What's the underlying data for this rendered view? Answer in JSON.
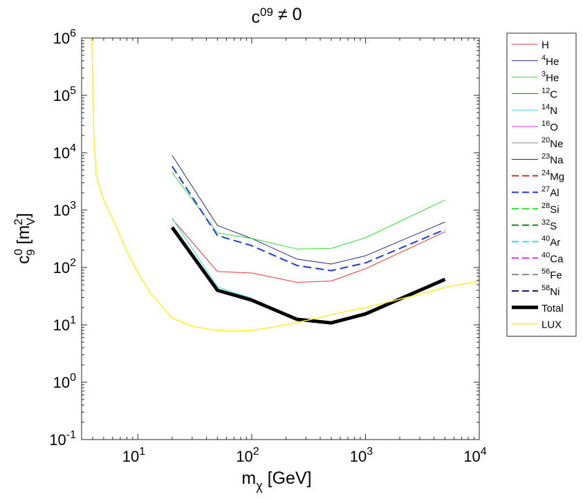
{
  "chart_data": {
    "type": "line",
    "title": "c",
    "title_sup": "0",
    "title_sub": "9",
    "title_tail": " ≠ 0",
    "xlabel": "m",
    "xlabel_sub": "χ",
    "xlabel_tail": " [GeV]",
    "ylabel": "c",
    "ylabel_sup": "0",
    "ylabel_sub": "9",
    "ylabel_mid": " [m",
    "ylabel_unit_sup": "2",
    "ylabel_unit_sub": "V",
    "ylabel_tail": "]",
    "xscale": "log",
    "yscale": "log",
    "xlim": [
      3.2,
      10000
    ],
    "ylim": [
      0.1,
      1000000
    ],
    "grid": false,
    "legend_position": "outside-right",
    "x_ticks": [
      {
        "base": "10",
        "exp": "1",
        "value": 10
      },
      {
        "base": "10",
        "exp": "2",
        "value": 100
      },
      {
        "base": "10",
        "exp": "3",
        "value": 1000
      },
      {
        "base": "10",
        "exp": "4",
        "value": 10000
      }
    ],
    "y_ticks": [
      {
        "base": "10",
        "exp": "-1",
        "value": 0.1
      },
      {
        "base": "10",
        "exp": "0",
        "value": 1
      },
      {
        "base": "10",
        "exp": "1",
        "value": 10
      },
      {
        "base": "10",
        "exp": "2",
        "value": 100
      },
      {
        "base": "10",
        "exp": "3",
        "value": 1000
      },
      {
        "base": "10",
        "exp": "4",
        "value": 10000
      },
      {
        "base": "10",
        "exp": "5",
        "value": 100000
      },
      {
        "base": "10",
        "exp": "6",
        "value": 1000000
      }
    ],
    "series": [
      {
        "name": "H",
        "sup": "",
        "label": "H",
        "color": "#ee3333",
        "style": "solid",
        "width": 1,
        "x": [
          20,
          50,
          100,
          250,
          500,
          1000,
          5000
        ],
        "y": [
          700,
          85,
          80,
          55,
          58,
          95,
          420
        ]
      },
      {
        "name": "4He",
        "sup": "4",
        "label": "He",
        "color": "#23238e",
        "style": "solid",
        "width": 1,
        "x": [
          20,
          50,
          100,
          250,
          500,
          1000,
          5000
        ],
        "y": [
          9000,
          540,
          320,
          140,
          115,
          160,
          620
        ]
      },
      {
        "name": "3He",
        "sup": "3",
        "label": "He",
        "color": "#33dd33",
        "style": "solid",
        "width": 1,
        "x": [
          20,
          50,
          100,
          250,
          500,
          1000,
          5000
        ],
        "y": [
          4500,
          400,
          320,
          210,
          215,
          330,
          1500
        ]
      },
      {
        "name": "12C",
        "sup": "12",
        "label": "C",
        "color": "#008800",
        "style": "solid",
        "width": 1,
        "x": [],
        "y": []
      },
      {
        "name": "14N",
        "sup": "14",
        "label": "N",
        "color": "#33dddd",
        "style": "solid",
        "width": 1,
        "x": [
          20,
          50,
          100
        ],
        "y": [
          720,
          46,
          29
        ]
      },
      {
        "name": "16O",
        "sup": "16",
        "label": "O",
        "color": "#ee33ee",
        "style": "solid",
        "width": 1,
        "x": [],
        "y": []
      },
      {
        "name": "20Ne",
        "sup": "20",
        "label": "Ne",
        "color": "#888888",
        "style": "solid",
        "width": 1,
        "x": [],
        "y": []
      },
      {
        "name": "23Na",
        "sup": "23",
        "label": "Na",
        "color": "#1a1a5e",
        "style": "solid",
        "width": 1,
        "x": [],
        "y": []
      },
      {
        "name": "24Mg",
        "sup": "24",
        "label": "Mg",
        "color": "#ee2222",
        "style": "dashed",
        "width": 2,
        "x": [],
        "y": []
      },
      {
        "name": "27Al",
        "sup": "27",
        "label": "Al",
        "color": "#1a3be0",
        "style": "dashed",
        "width": 2,
        "x": [
          20,
          50,
          100,
          250,
          500,
          1000,
          5000
        ],
        "y": [
          5800,
          360,
          240,
          108,
          88,
          120,
          460
        ]
      },
      {
        "name": "28Si",
        "sup": "28",
        "label": "Si",
        "color": "#33ee33",
        "style": "dashed",
        "width": 2,
        "x": [],
        "y": []
      },
      {
        "name": "32S",
        "sup": "32",
        "label": "S",
        "color": "#118811",
        "style": "dashed",
        "width": 2,
        "x": [],
        "y": []
      },
      {
        "name": "40Ar",
        "sup": "40",
        "label": "Ar",
        "color": "#33dddd",
        "style": "dashed",
        "width": 2,
        "x": [],
        "y": []
      },
      {
        "name": "40Ca",
        "sup": "40",
        "label": "Ca",
        "color": "#dd33dd",
        "style": "dashed",
        "width": 2,
        "x": [],
        "y": []
      },
      {
        "name": "56Fe",
        "sup": "56",
        "label": "Fe",
        "color": "#888888",
        "style": "dashed",
        "width": 2,
        "x": [],
        "y": []
      },
      {
        "name": "58Ni",
        "sup": "58",
        "label": "Ni",
        "color": "#1a1a6e",
        "style": "dashed",
        "width": 2,
        "x": [],
        "y": []
      },
      {
        "name": "Total",
        "sup": "",
        "label": "Total",
        "color": "#000000",
        "style": "solid",
        "width": 5,
        "x": [
          20,
          50,
          100,
          250,
          500,
          1000,
          5000
        ],
        "y": [
          500,
          40,
          27,
          12.5,
          10.8,
          15.5,
          62
        ]
      },
      {
        "name": "LUX",
        "sup": "",
        "label": "LUX",
        "color": "#ffee22",
        "style": "solid",
        "width": 1.5,
        "x": [
          3.9,
          4.0,
          4.1,
          4.3,
          4.6,
          5,
          6,
          7,
          8,
          10,
          13,
          20,
          30,
          45,
          65,
          100,
          150,
          250,
          400,
          700,
          1000,
          2000,
          3000,
          5000,
          10000
        ],
        "y": [
          1000000,
          300000,
          20000,
          4000,
          2500,
          1500,
          700,
          350,
          190,
          80,
          35,
          13,
          9.5,
          8.2,
          7.8,
          8.0,
          9.0,
          11.0,
          13.5,
          17.5,
          20,
          28,
          34,
          45,
          58
        ]
      }
    ]
  }
}
